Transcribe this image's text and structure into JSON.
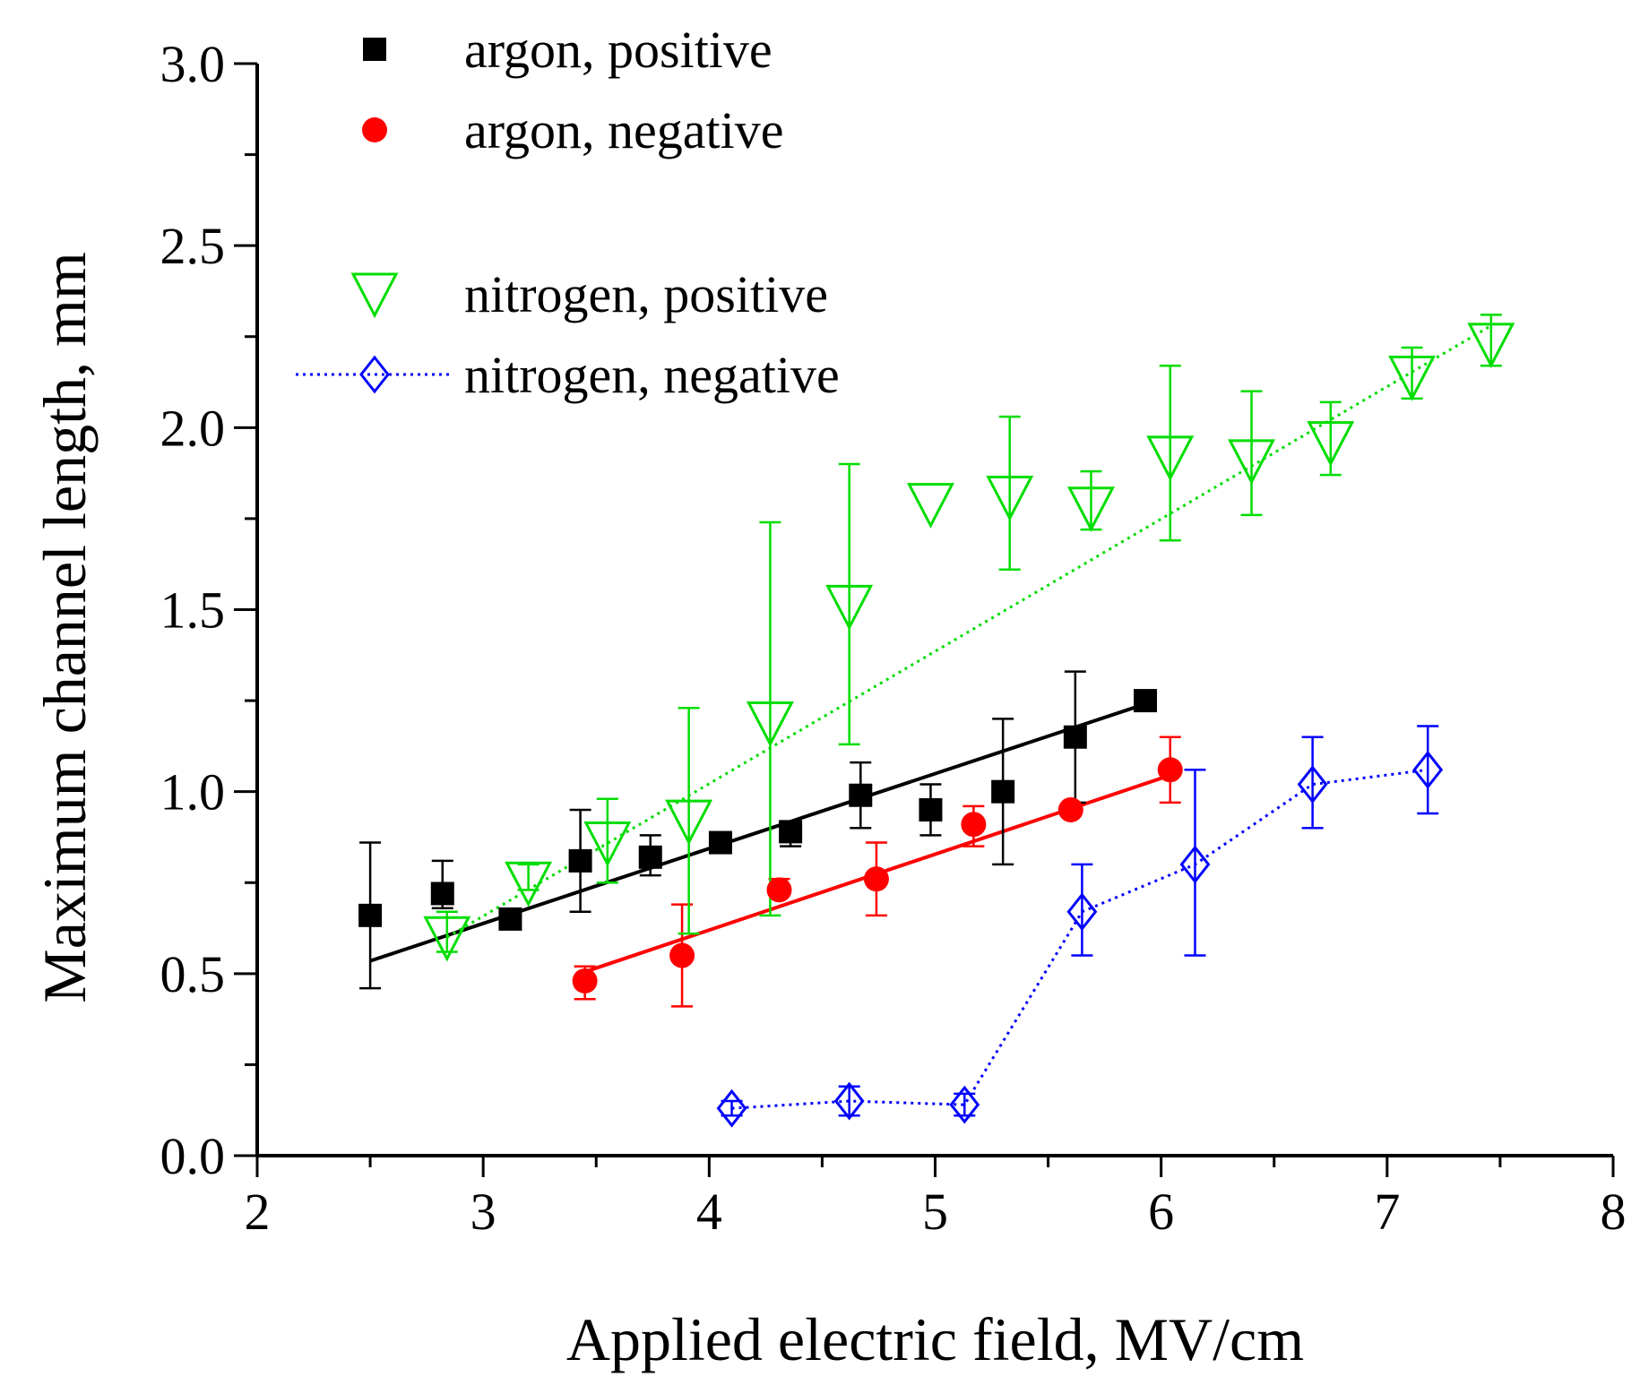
{
  "chart_data": {
    "type": "scatter",
    "xlabel": "Applied electric field, MV/cm",
    "ylabel": "Maximum channel length, mm",
    "xlim": [
      2,
      8
    ],
    "ylim": [
      0,
      3
    ],
    "xticks": [
      2,
      3,
      4,
      5,
      6,
      7,
      8
    ],
    "yticks": [
      0.0,
      0.5,
      1.0,
      1.5,
      2.0,
      2.5,
      3.0
    ],
    "xtick_labels": [
      "2",
      "3",
      "4",
      "5",
      "6",
      "7",
      "8"
    ],
    "ytick_labels": [
      "0.0",
      "0.5",
      "1.0",
      "1.5",
      "2.0",
      "2.5",
      "3.0"
    ],
    "legend_position": "top-left",
    "grid": false,
    "series": [
      {
        "name": "argon, positive",
        "marker": "filled-square",
        "color": "#000000",
        "x": [
          2.5,
          2.82,
          3.12,
          3.43,
          3.74,
          4.05,
          4.36,
          4.67,
          4.98,
          5.3,
          5.62,
          5.93
        ],
        "y": [
          0.66,
          0.72,
          0.65,
          0.81,
          0.82,
          0.86,
          0.89,
          0.99,
          0.95,
          1.0,
          1.15,
          1.25
        ],
        "err_up": [
          0.2,
          0.09,
          0.0,
          0.14,
          0.06,
          0.0,
          0.0,
          0.09,
          0.07,
          0.2,
          0.18,
          0.0
        ],
        "err_down": [
          0.2,
          0.04,
          0.0,
          0.14,
          0.05,
          0.0,
          0.04,
          0.09,
          0.07,
          0.2,
          0.18,
          0.0
        ],
        "fit": {
          "style": "solid",
          "x": [
            2.5,
            5.95
          ],
          "y": [
            0.535,
            1.245
          ]
        }
      },
      {
        "name": "argon, negative",
        "marker": "filled-circle",
        "color": "#ff0000",
        "x": [
          3.45,
          3.88,
          4.31,
          4.74,
          5.17,
          5.6,
          6.04
        ],
        "y": [
          0.48,
          0.55,
          0.73,
          0.76,
          0.91,
          0.95,
          1.06
        ],
        "err_up": [
          0.04,
          0.14,
          0.03,
          0.1,
          0.05,
          0.0,
          0.09
        ],
        "err_down": [
          0.05,
          0.14,
          0.0,
          0.1,
          0.06,
          0.0,
          0.09
        ],
        "fit": {
          "style": "solid",
          "x": [
            3.45,
            6.04
          ],
          "y": [
            0.505,
            1.045
          ]
        }
      },
      {
        "name": "nitrogen, positive",
        "marker": "open-triangle-down",
        "color": "#00dd00",
        "x": [
          2.84,
          3.2,
          3.55,
          3.91,
          4.27,
          4.62,
          4.98,
          5.33,
          5.69,
          6.04,
          6.4,
          6.75,
          7.11,
          7.46
        ],
        "y": [
          0.6,
          0.75,
          0.86,
          0.92,
          1.19,
          1.51,
          1.79,
          1.81,
          1.78,
          1.92,
          1.91,
          1.96,
          2.14,
          2.23
        ],
        "err_up": [
          0.07,
          0.05,
          0.12,
          0.31,
          0.55,
          0.39,
          0.0,
          0.22,
          0.1,
          0.25,
          0.19,
          0.11,
          0.08,
          0.08
        ],
        "err_down": [
          0.04,
          0.02,
          0.11,
          0.31,
          0.53,
          0.38,
          0.0,
          0.2,
          0.06,
          0.23,
          0.15,
          0.09,
          0.06,
          0.06
        ],
        "fit": {
          "style": "dotted",
          "x": [
            2.84,
            7.46
          ],
          "y": [
            0.6,
            2.28
          ]
        }
      },
      {
        "name": "nitrogen, negative",
        "marker": "open-diamond",
        "color": "#0000ff",
        "connect": "dotted",
        "x": [
          4.1,
          4.62,
          5.13,
          5.65,
          6.15,
          6.67,
          7.18
        ],
        "y": [
          0.13,
          0.15,
          0.14,
          0.67,
          0.8,
          1.02,
          1.06
        ],
        "err_up": [
          0.02,
          0.04,
          0.03,
          0.13,
          0.26,
          0.13,
          0.12
        ],
        "err_down": [
          0.02,
          0.04,
          0.03,
          0.12,
          0.25,
          0.12,
          0.12
        ]
      }
    ]
  }
}
